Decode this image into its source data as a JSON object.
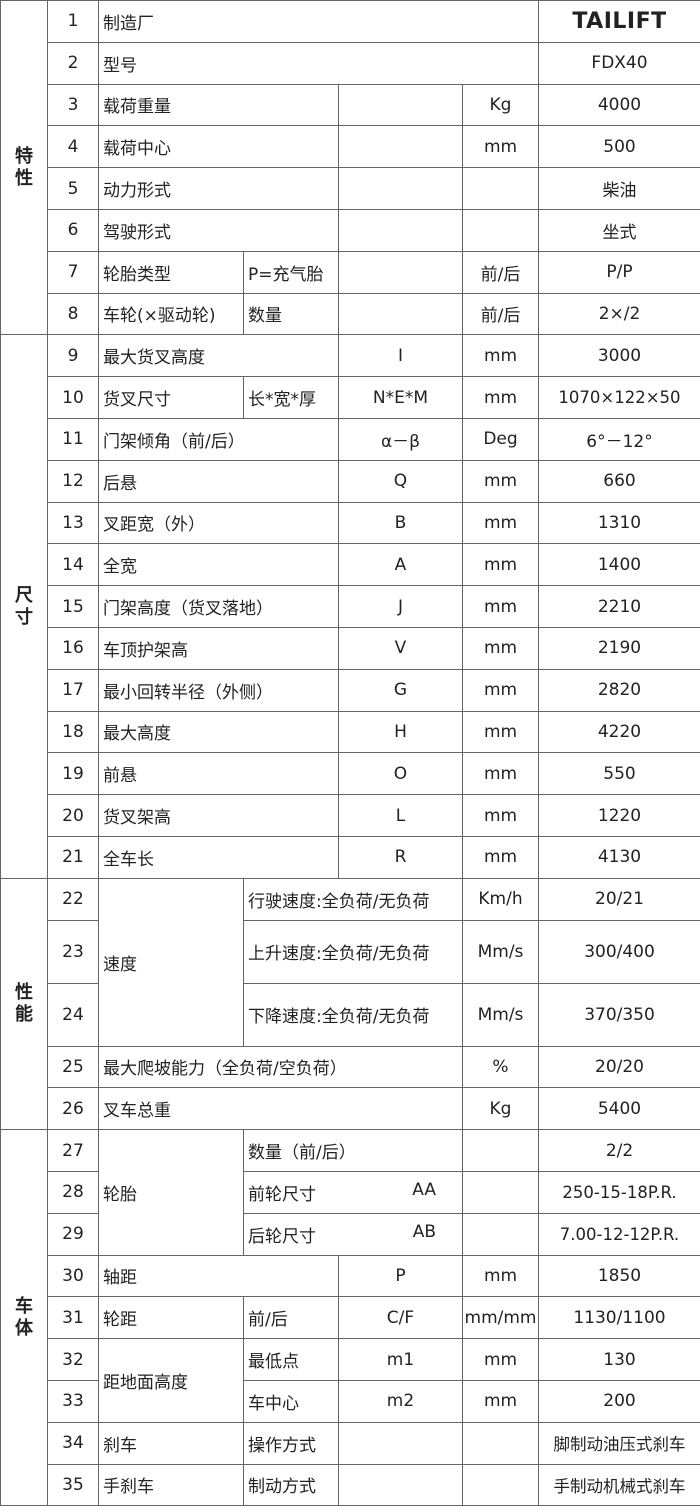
{
  "groups": [
    "特性",
    "尺寸",
    "性能",
    "车体"
  ],
  "rows": [
    [
      "1",
      "制造厂",
      "TAILIFT"
    ],
    [
      "2",
      "型号",
      "FDX40"
    ],
    [
      "3",
      "载荷重量",
      "Kg",
      "4000"
    ],
    [
      "4",
      "载荷中心",
      "mm",
      "500"
    ],
    [
      "5",
      "动力形式",
      "柴油"
    ],
    [
      "6",
      "驾驶形式",
      "坐式"
    ],
    [
      "7",
      "轮胎类型",
      "P=充气胎",
      "前/后",
      "P/P"
    ],
    [
      "8",
      "车轮(×驱动轮)",
      "数量",
      "前/后",
      "2×/2"
    ],
    [
      "9",
      "最大货叉高度",
      "I",
      "mm",
      "3000"
    ],
    [
      "10",
      "货叉尺寸",
      "长*宽*厚",
      "N*E*M",
      "mm",
      "1070×122×50"
    ],
    [
      "11",
      "门架倾角（前/后）",
      "α－β",
      "Deg",
      "6°－12°"
    ],
    [
      "12",
      "后悬",
      "Q",
      "mm",
      "660"
    ],
    [
      "13",
      "叉距宽（外）",
      "B",
      "mm",
      "1310"
    ],
    [
      "14",
      "全宽",
      "A",
      "mm",
      "1400"
    ],
    [
      "15",
      "门架高度（货叉落地）",
      "J",
      "mm",
      "2210"
    ],
    [
      "16",
      "车顶护架高",
      "V",
      "mm",
      "2190"
    ],
    [
      "17",
      "最小回转半径（外侧）",
      "G",
      "mm",
      "2820"
    ],
    [
      "18",
      "最大高度",
      "H",
      "mm",
      "4220"
    ],
    [
      "19",
      "前悬",
      "O",
      "mm",
      "550"
    ],
    [
      "20",
      "货叉架高",
      "L",
      "mm",
      "1220"
    ],
    [
      "21",
      "全车长",
      "R",
      "mm",
      "4130"
    ],
    [
      "22",
      "速度",
      "行驶速度:全负荷/无负荷",
      "Km/h",
      "20/21"
    ],
    [
      "23",
      "上升速度:全负荷/无负荷",
      "Mm/s",
      "300/400"
    ],
    [
      "24",
      "下降速度:全负荷/无负荷",
      "Mm/s",
      "370/350"
    ],
    [
      "25",
      "最大爬坡能力（全负荷/空负荷）",
      "%",
      "20/20"
    ],
    [
      "26",
      "叉车总重",
      "Kg",
      "5400"
    ],
    [
      "27",
      "轮胎",
      "数量（前/后）",
      "2/2"
    ],
    [
      "28",
      "前轮尺寸",
      "AA",
      "250-15-18P.R."
    ],
    [
      "29",
      "后轮尺寸",
      "AB",
      "7.00-12-12P.R."
    ],
    [
      "30",
      "轴距",
      "P",
      "mm",
      "1850"
    ],
    [
      "31",
      "轮距",
      "前/后",
      "C/F",
      "mm/mm",
      "1130/1100"
    ],
    [
      "32",
      "距地面高度",
      "最低点",
      "m1",
      "mm",
      "130"
    ],
    [
      "33",
      "车中心",
      "m2",
      "mm",
      "200"
    ],
    [
      "34",
      "刹车",
      "操作方式",
      "脚制动油压式刹车"
    ],
    [
      "35",
      "手刹车",
      "制动方式",
      "手制动机械式刹车"
    ]
  ]
}
